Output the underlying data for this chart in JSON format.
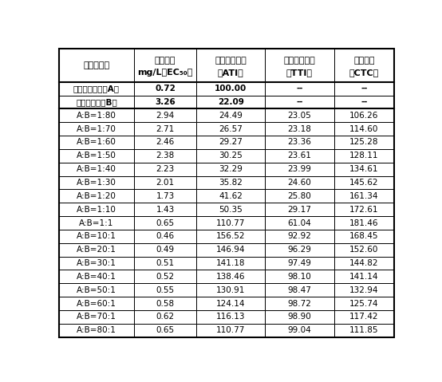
{
  "col_headers_line1": [
    "药剂及配比",
    "抑制中浓",
    "实测毒力指数",
    "理论毒力指数",
    "共毒系数"
  ],
  "col_headers_line2": [
    "",
    "mg/L（EC₅₀）",
    "（ATI）",
    "（TTI）",
    "（CTC）"
  ],
  "rows": [
    [
      "氟唠菌酰羟胺（A）",
      "0.72",
      "100.00",
      "--",
      "--"
    ],
    [
      "胺苯吠菌酮（B）",
      "3.26",
      "22.09",
      "--",
      "--"
    ],
    [
      "A:B=1:80",
      "2.94",
      "24.49",
      "23.05",
      "106.26"
    ],
    [
      "A:B=1:70",
      "2.71",
      "26.57",
      "23.18",
      "114.60"
    ],
    [
      "A:B=1:60",
      "2.46",
      "29.27",
      "23.36",
      "125.28"
    ],
    [
      "A:B=1:50",
      "2.38",
      "30.25",
      "23.61",
      "128.11"
    ],
    [
      "A:B=1:40",
      "2.23",
      "32.29",
      "23.99",
      "134.61"
    ],
    [
      "A:B=1:30",
      "2.01",
      "35.82",
      "24.60",
      "145.62"
    ],
    [
      "A:B=1:20",
      "1.73",
      "41.62",
      "25.80",
      "161.34"
    ],
    [
      "A:B=1:10",
      "1.43",
      "50.35",
      "29.17",
      "172.61"
    ],
    [
      "A:B=1:1",
      "0.65",
      "110.77",
      "61.04",
      "181.46"
    ],
    [
      "A:B=10:1",
      "0.46",
      "156.52",
      "92.92",
      "168.45"
    ],
    [
      "A:B=20:1",
      "0.49",
      "146.94",
      "96.29",
      "152.60"
    ],
    [
      "A:B=30:1",
      "0.51",
      "141.18",
      "97.49",
      "144.82"
    ],
    [
      "A:B=40:1",
      "0.52",
      "138.46",
      "98.10",
      "141.14"
    ],
    [
      "A:B=50:1",
      "0.55",
      "130.91",
      "98.47",
      "132.94"
    ],
    [
      "A:B=60:1",
      "0.58",
      "124.14",
      "98.72",
      "125.74"
    ],
    [
      "A:B=70:1",
      "0.62",
      "116.13",
      "98.90",
      "117.42"
    ],
    [
      "A:B=80:1",
      "0.65",
      "110.77",
      "99.04",
      "111.85"
    ]
  ],
  "bold_rows": [
    0,
    1
  ],
  "figsize": [
    5.54,
    4.79
  ],
  "dpi": 100,
  "border_color": "#000000",
  "font_size": 7.5,
  "header_font_size": 8.0
}
